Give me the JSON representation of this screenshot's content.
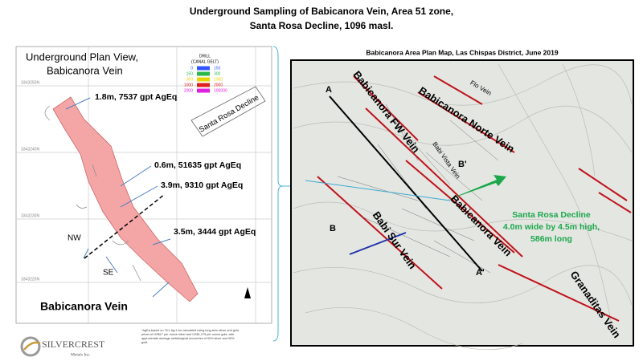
{
  "title": [
    "Underground Sampling of Babicanora Vein, Area 51 zone,",
    "Santa Rosa Decline, 1096 masl."
  ],
  "left_panel": {
    "heading": [
      "Underground Plan View,",
      "Babicanora Vein"
    ],
    "legend": {
      "title": "DRILL",
      "subtitle": "(CANAL GELT)",
      "rows": [
        [
          "0",
          "150"
        ],
        [
          "150",
          "300"
        ],
        [
          "300",
          "1000"
        ],
        [
          "1000",
          "2000"
        ],
        [
          "2000",
          "100000"
        ]
      ]
    },
    "northings": [
      "3343250N",
      "3343240N",
      "3343230N",
      "3343220N"
    ],
    "decline_label": "Santa Rosa Decline",
    "samples": [
      "1.8m, 7537 gpt AgEq",
      "0.6m, 51635 gpt AgEq",
      "3.9m, 9310 gpt AgEq",
      "3.5m, 3444 gpt AgEq"
    ],
    "directions": [
      "NW",
      "SE"
    ],
    "vein_label": "Babicanora Vein",
    "footnote": [
      "*AgEq based on 75:1 Ag:1 Au calculated using long-term silver and gold",
      "prices of US$17 per ounce silver and US$1,275 per ounce gold, with",
      "approximate average metallurgical recoveries of 90% silver and 95%",
      "gold."
    ],
    "logo": {
      "name": "SILVERCREST",
      "sub": "Metals Inc."
    }
  },
  "right_panel": {
    "title": "Babicanora Area Plan Map, Las Chispas District, June 2019",
    "vein_labels": [
      "Babicanora FW Vein",
      "Babicanora Norte Vein",
      "Babi Vista Vein",
      "Babicanora Vein",
      "Babi Sur Vein",
      "Granaditas Vein",
      "Flo Vein"
    ],
    "section_labels": [
      "A",
      "A'",
      "B",
      "B'"
    ],
    "decline_callout": [
      "Santa Rosa Decline",
      "4.0m wide by 4.5m high,",
      "586m long"
    ]
  }
}
